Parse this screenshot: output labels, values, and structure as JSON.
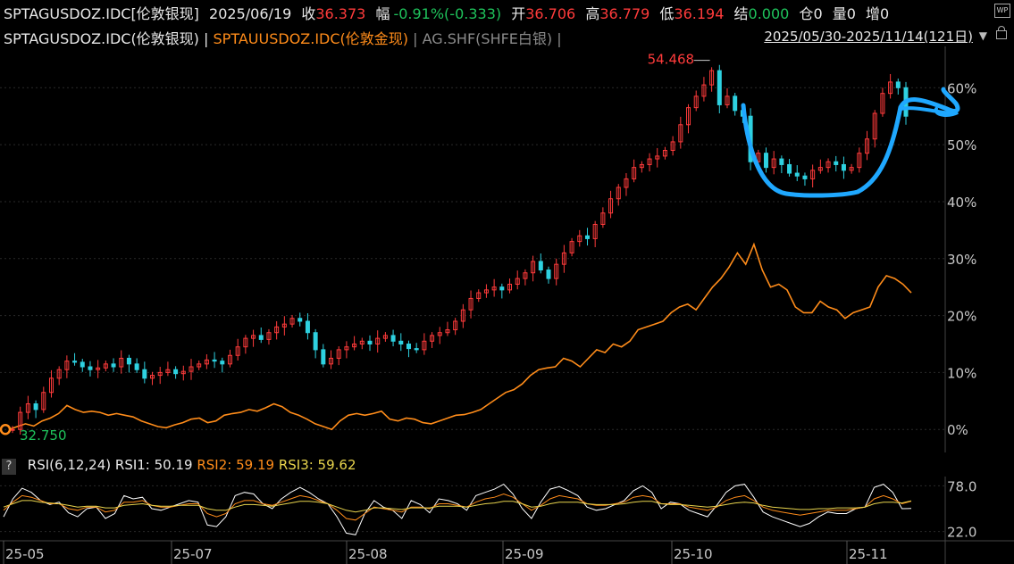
{
  "header": {
    "symbol": "SPTAGUSDOZ.IDC[伦敦银现]",
    "date": "2025/06/19",
    "close_label": "收",
    "close_value": "36.373",
    "change_label": "幅",
    "change_value": "-0.91%(-0.333)",
    "open_label": "开",
    "open_value": "36.706",
    "high_label": "高",
    "high_value": "36.779",
    "low_label": "低",
    "low_value": "36.194",
    "settle_label": "结",
    "settle_value": "0.000",
    "position_label": "仓",
    "position_value": "0",
    "volume_label": "量",
    "volume_value": "0",
    "increase_label": "增",
    "increase_value": "0"
  },
  "legend": {
    "item1": "SPTAGUSDOZ.IDC(伦敦银现)",
    "sep1": "|",
    "item2": "SPTAUUSDOZ.IDC(伦敦金现)",
    "sep2": "|",
    "item3": "AG.SHF(SHFE白银)",
    "sep3": "|",
    "range": "2025/05/30-2025/11/14(121日)"
  },
  "rsi_header": {
    "help": "?",
    "name": "RSI(6,12,24)",
    "rsi1": "RSI1: 50.19",
    "rsi2": "RSI2: 59.19",
    "rsi3": "RSI3: 59.62"
  },
  "colors": {
    "up": "#ff3b3b",
    "down": "#2ed1e0",
    "gold": "#ff8c1a",
    "rsi1": "#ffffff",
    "rsi2": "#ff8c1a",
    "rsi3": "#e8d44d",
    "annotation": "#1fa8ff"
  },
  "chart_data": [
    {
      "type": "line",
      "title": "",
      "yaxis_labels": [
        "0%",
        "10%",
        "20%",
        "30%",
        "40%",
        "50%",
        "60%"
      ],
      "ylim": [
        -2,
        66
      ],
      "x_tick_labels": [
        "25-05",
        "25-07",
        "25-08",
        "25-09",
        "25-10",
        "25-11"
      ],
      "annotations": {
        "high_label": "54.468",
        "low_label": "32.750"
      },
      "series": [
        {
          "name": "SPTAGUSDOZ.IDC(伦敦银现)",
          "style": "candlestick",
          "values": [
            0.0,
            3.0,
            4.5,
            3.5,
            6.5,
            9.0,
            10.5,
            12.0,
            11.8,
            11.0,
            10.5,
            10.8,
            11.5,
            11.0,
            12.5,
            11.5,
            10.5,
            9.0,
            9.5,
            10.0,
            10.5,
            9.8,
            10.2,
            11.0,
            11.5,
            12.2,
            12.0,
            11.5,
            13.0,
            14.5,
            16.0,
            16.5,
            15.8,
            17.0,
            18.0,
            18.5,
            19.5,
            19.0,
            17.0,
            14.0,
            11.5,
            12.5,
            14.0,
            14.5,
            15.0,
            15.5,
            15.0,
            16.0,
            16.5,
            15.5,
            15.0,
            14.2,
            14.0,
            15.5,
            16.5,
            17.0,
            17.5,
            19.0,
            21.0,
            23.0,
            24.0,
            24.5,
            25.0,
            24.5,
            25.5,
            26.5,
            27.5,
            29.5,
            28.0,
            26.5,
            29.0,
            31.0,
            33.0,
            34.0,
            33.5,
            36.0,
            38.0,
            40.5,
            42.5,
            44.0,
            46.0,
            46.5,
            47.5,
            48.0,
            49.0,
            50.5,
            53.5,
            56.5,
            58.5,
            60.5,
            63.0,
            57.0,
            58.5,
            56.0,
            55.0,
            47.0,
            48.5,
            46.0,
            47.5,
            46.5,
            45.0,
            44.5,
            44.0,
            45.5,
            46.0,
            47.0,
            46.5,
            45.5,
            46.0,
            48.5,
            51.0,
            55.5,
            59.0,
            61.0,
            60.0,
            55.0
          ],
          "note": "Values are relative % change from 2025/05/30 start, estimated from axis."
        },
        {
          "name": "SPTAUUSDOZ.IDC(伦敦金现)",
          "values": [
            0.0,
            0.5,
            1.0,
            0.6,
            1.5,
            2.0,
            2.8,
            4.2,
            3.5,
            3.0,
            3.2,
            3.0,
            2.5,
            2.8,
            2.5,
            2.2,
            1.5,
            1.0,
            0.5,
            0.3,
            0.8,
            1.2,
            1.8,
            2.0,
            1.2,
            1.5,
            2.5,
            2.8,
            3.0,
            3.5,
            3.2,
            3.8,
            4.5,
            4.0,
            3.0,
            2.5,
            1.8,
            1.0,
            0.5,
            0.0,
            1.5,
            2.5,
            2.8,
            2.5,
            2.8,
            3.2,
            1.8,
            1.5,
            2.0,
            1.8,
            1.2,
            1.0,
            1.5,
            2.0,
            2.5,
            2.6,
            3.0,
            3.5,
            4.5,
            5.5,
            6.5,
            7.0,
            8.0,
            9.5,
            10.5,
            10.8,
            11.0,
            12.5,
            12.0,
            11.0,
            12.5,
            14.0,
            13.5,
            15.0,
            14.5,
            15.5,
            17.5,
            18.0,
            18.5,
            19.0,
            20.5,
            21.5,
            22.0,
            21.0,
            23.0,
            25.0,
            26.5,
            28.5,
            31.0,
            29.0,
            32.5,
            28.0,
            25.0,
            25.5,
            24.5,
            21.5,
            20.5,
            20.5,
            22.5,
            21.5,
            21.0,
            19.5,
            20.5,
            21.0,
            21.5,
            25.0,
            27.0,
            26.5,
            25.5,
            24.0
          ],
          "note": "Relative % change line."
        }
      ]
    },
    {
      "type": "line",
      "title": "RSI(6,12,24)",
      "yaxis_labels": [
        "78.0",
        "22.0"
      ],
      "ylim": [
        15,
        85
      ],
      "series": [
        {
          "name": "RSI1",
          "values": [
            40,
            62,
            75,
            70,
            60,
            55,
            58,
            45,
            40,
            50,
            52,
            38,
            44,
            66,
            62,
            64,
            50,
            48,
            52,
            56,
            60,
            58,
            30,
            28,
            40,
            66,
            70,
            68,
            56,
            50,
            62,
            70,
            76,
            70,
            62,
            56,
            40,
            20,
            18,
            44,
            60,
            52,
            48,
            38,
            60,
            55,
            45,
            62,
            60,
            56,
            48,
            66,
            70,
            74,
            80,
            68,
            50,
            38,
            58,
            74,
            77,
            72,
            66,
            52,
            48,
            50,
            55,
            60,
            72,
            78,
            70,
            50,
            58,
            56,
            48,
            44,
            40,
            54,
            70,
            78,
            80,
            64,
            46,
            40,
            36,
            32,
            28,
            32,
            40,
            46,
            44,
            44,
            50,
            52,
            76,
            80,
            70,
            50,
            50.19
          ]
        },
        {
          "name": "RSI2",
          "values": [
            48,
            58,
            66,
            64,
            60,
            56,
            56,
            50,
            48,
            52,
            52,
            46,
            48,
            58,
            58,
            60,
            54,
            52,
            52,
            54,
            56,
            56,
            44,
            40,
            44,
            56,
            60,
            60,
            56,
            54,
            58,
            62,
            66,
            64,
            60,
            56,
            48,
            38,
            36,
            44,
            52,
            50,
            48,
            46,
            52,
            52,
            50,
            56,
            56,
            54,
            52,
            58,
            62,
            64,
            68,
            64,
            56,
            48,
            54,
            62,
            66,
            64,
            62,
            56,
            54,
            54,
            56,
            58,
            64,
            66,
            64,
            56,
            56,
            56,
            52,
            50,
            48,
            52,
            60,
            64,
            66,
            60,
            52,
            48,
            46,
            44,
            42,
            44,
            46,
            48,
            48,
            48,
            50,
            52,
            62,
            66,
            62,
            56,
            59.19
          ]
        },
        {
          "name": "RSI3",
          "values": [
            52,
            56,
            60,
            60,
            58,
            57,
            56,
            54,
            52,
            53,
            53,
            51,
            51,
            54,
            55,
            56,
            54,
            53,
            53,
            54,
            54,
            54,
            50,
            48,
            48,
            52,
            55,
            55,
            54,
            53,
            55,
            57,
            59,
            59,
            58,
            56,
            52,
            48,
            46,
            48,
            51,
            51,
            50,
            49,
            51,
            51,
            51,
            53,
            53,
            53,
            52,
            54,
            56,
            57,
            59,
            59,
            56,
            52,
            53,
            56,
            58,
            58,
            58,
            56,
            55,
            55,
            55,
            56,
            58,
            59,
            59,
            56,
            55,
            55,
            54,
            53,
            52,
            53,
            55,
            57,
            58,
            57,
            54,
            52,
            51,
            50,
            49,
            49,
            50,
            50,
            51,
            51,
            51,
            52,
            56,
            58,
            58,
            57,
            59.62
          ]
        }
      ]
    }
  ]
}
